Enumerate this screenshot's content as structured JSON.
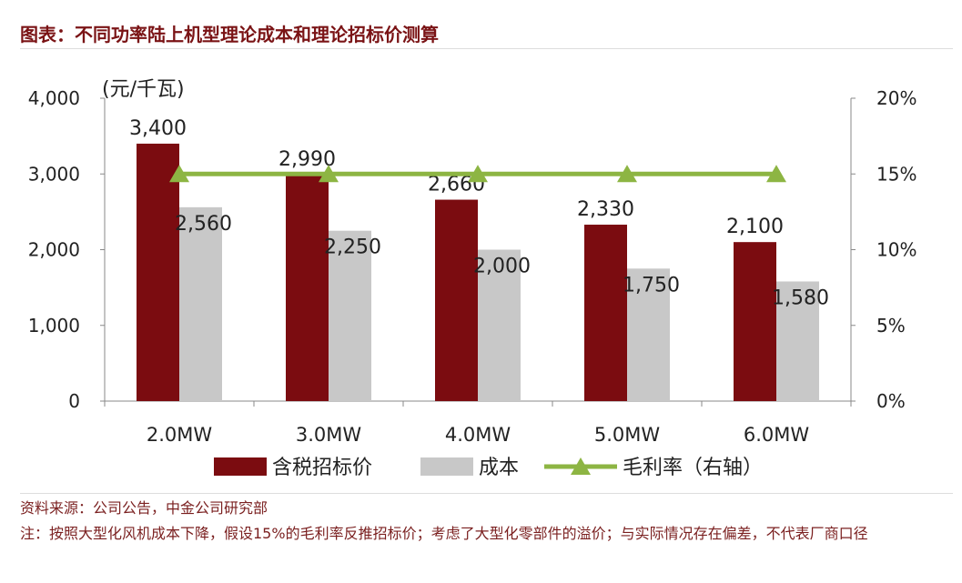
{
  "title": "图表：不同功率陆上机型理论成本和理论招标价测算",
  "source": "资料来源：公司公告，中金公司研究部",
  "note": "注：按照大型化风机成本下降，假设15%的毛利率反推招标价；考虑了大型化零部件的溢价；与实际情况存在偏差，不代表厂商口径",
  "chart_data": {
    "type": "bar",
    "categories": [
      "2.0MW",
      "3.0MW",
      "4.0MW",
      "5.0MW",
      "6.0MW"
    ],
    "ylabel": "(元/千瓦)",
    "ylim": [
      0,
      4000
    ],
    "yticks": [
      "0",
      "1,000",
      "2,000",
      "3,000",
      "4,000"
    ],
    "y2lim": [
      0,
      20
    ],
    "y2ticks": [
      "0%",
      "5%",
      "10%",
      "15%",
      "20%"
    ],
    "legend_placement": "bottom",
    "series": [
      {
        "name": "含税招标价",
        "type": "bar",
        "color": "#7b0c10",
        "values": [
          3400,
          2990,
          2660,
          2330,
          2100
        ],
        "labels": [
          "3,400",
          "2,990",
          "2,660",
          "2,330",
          "2,100"
        ]
      },
      {
        "name": "成本",
        "type": "bar",
        "color": "#c8c8c8",
        "values": [
          2560,
          2250,
          2000,
          1750,
          1580
        ],
        "labels": [
          "2,560",
          "2,250",
          "2,000",
          "1,750",
          "1,580"
        ]
      },
      {
        "name": "毛利率（右轴）",
        "type": "line",
        "axis": "right",
        "color": "#8db543",
        "values": [
          15,
          15,
          15,
          15,
          15
        ]
      }
    ]
  }
}
